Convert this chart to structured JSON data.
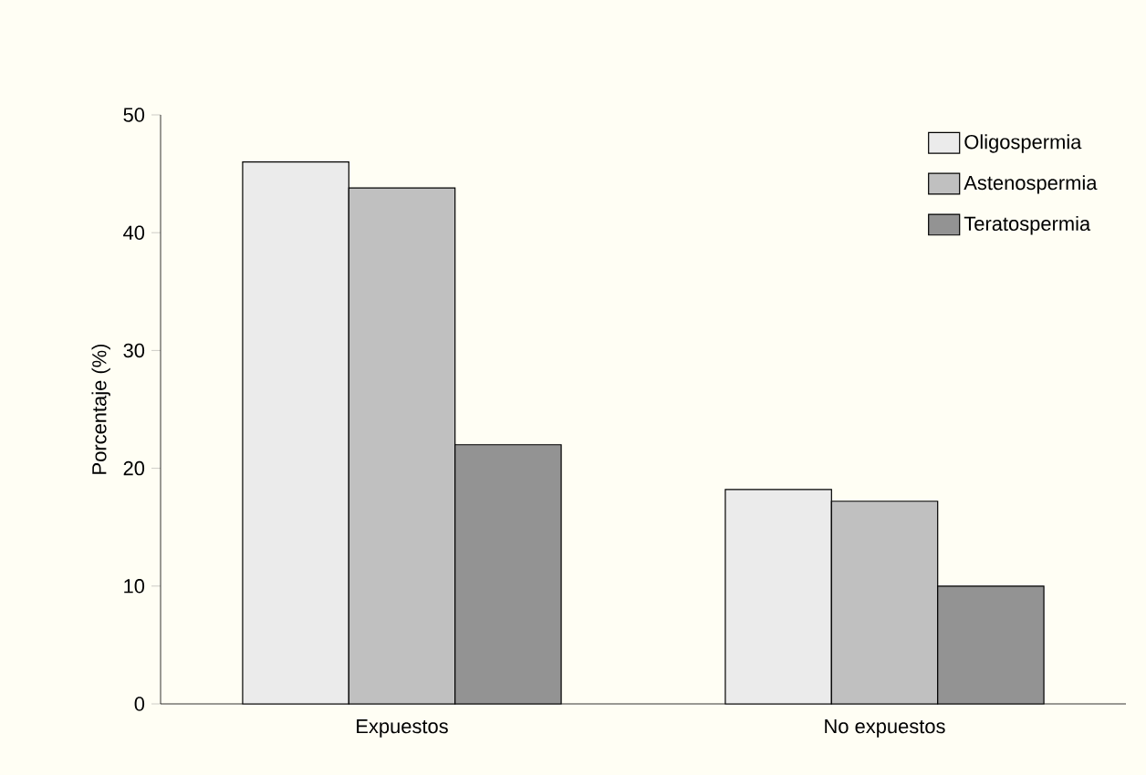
{
  "chart_data": {
    "type": "bar",
    "ylabel": "Porcentaje (%)",
    "categories": [
      "Expuestos",
      "No expuestos"
    ],
    "series": [
      {
        "name": "Oligospermia",
        "color": "#ebebeb",
        "values": [
          46,
          18.2
        ]
      },
      {
        "name": "Astenospermia",
        "color": "#c0c0c0",
        "values": [
          43.8,
          17.2
        ]
      },
      {
        "name": "Teratospermia",
        "color": "#939393",
        "values": [
          22,
          10
        ]
      }
    ],
    "ylim": [
      0,
      50
    ],
    "yticks": [
      0,
      10,
      20,
      30,
      40,
      50
    ],
    "legend": "top right"
  }
}
